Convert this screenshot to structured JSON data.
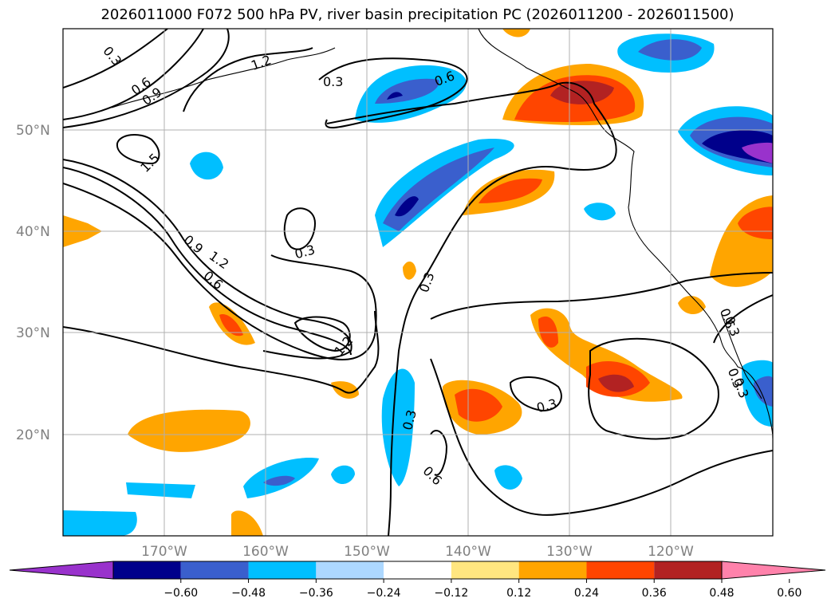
{
  "title": "2026011000 F072 500 hPa PV, river basin precipitation PC (2026011200 - 2026011500)",
  "lat_labels": [
    "50°N",
    "40°N",
    "30°N",
    "20°N"
  ],
  "lon_labels": [
    "170°W",
    "160°W",
    "150°W",
    "140°W",
    "130°W",
    "120°W"
  ],
  "contour_labels": [
    "0.3",
    "0.6",
    "0.9",
    "1.2",
    "1.5",
    "0.3",
    "0.6",
    "0.3",
    "0.6",
    "0.3",
    "0.9",
    "1.2",
    "0.6",
    "1.2",
    "0.3",
    "0.3",
    "0.6",
    "0.3",
    "0.3",
    "0.3"
  ],
  "colorbar": {
    "ticks": [
      "−0.60",
      "−0.48",
      "−0.36",
      "−0.24",
      "−0.12",
      "0.12",
      "0.24",
      "0.36",
      "0.48",
      "0.60"
    ],
    "colors": [
      "#9932cc",
      "#00008b",
      "#3a5fcd",
      "#00bfff",
      "#add8ff",
      "#ffffff",
      "#ffe680",
      "#ffa500",
      "#ff4500",
      "#b22222",
      "#ff82ab"
    ]
  },
  "palette": {
    "n4": "#00008b",
    "n3": "#3a5fcd",
    "n2": "#00bfff",
    "n1": "#add8ff",
    "p1": "#ffe680",
    "p2": "#ffa500",
    "p3": "#ff4500",
    "p4": "#b22222",
    "n5": "#9932cc"
  }
}
